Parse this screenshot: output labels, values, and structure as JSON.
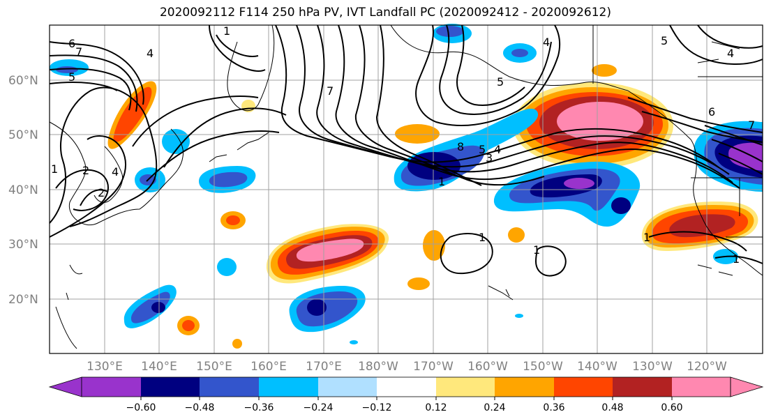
{
  "title": "2020092112 F114 250 hPa PV, IVT Landfall PC (2020092412 - 2020092612)",
  "lat_labels": [
    "60°N",
    "50°N",
    "40°N",
    "30°N",
    "20°N"
  ],
  "lon_labels": [
    "130°E",
    "140°E",
    "150°E",
    "160°E",
    "170°E",
    "180°W",
    "170°W",
    "160°W",
    "150°W",
    "140°W",
    "130°W",
    "120°W"
  ],
  "colorbar": {
    "tick_labels": [
      "−0.60",
      "−0.48",
      "−0.36",
      "−0.24",
      "−0.12",
      "0.12",
      "0.24",
      "0.36",
      "0.48",
      "0.60"
    ],
    "colors": [
      "#9933cc",
      "#000080",
      "#3355cc",
      "#00bfff",
      "#b0e0ff",
      "#ffffff",
      "#ffe87c",
      "#ffa500",
      "#ff4500",
      "#b22222",
      "#ff88b0",
      "#ffffff"
    ]
  },
  "contour_labels": [
    "6",
    "7",
    "5",
    "4",
    "1",
    "2",
    "4",
    "2",
    "1",
    "7",
    "8",
    "5",
    "4",
    "3",
    "1",
    "5",
    "4",
    "5",
    "6",
    "7",
    "4",
    "1",
    "1",
    "1",
    "1"
  ],
  "palette": {
    "purple": "#9933cc",
    "navy": "#000080",
    "blue": "#3355cc",
    "cyan": "#00bfff",
    "lightblue": "#b0e0ff",
    "yellow": "#ffe87c",
    "orange": "#ffa500",
    "red": "#ff4500",
    "darkred": "#b22222",
    "pink": "#ff88b0"
  }
}
